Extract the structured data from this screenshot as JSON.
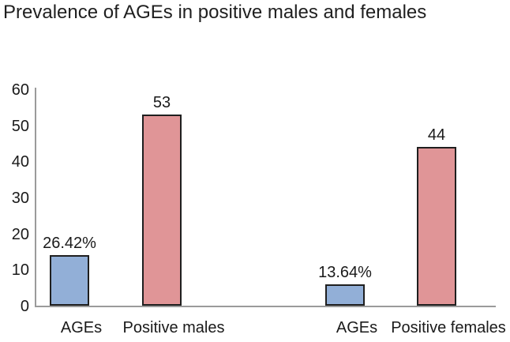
{
  "title": "Prevalence of AGEs in positive males and females",
  "colors": {
    "blue_bar": "#92AFD7",
    "pink_bar": "#E09597",
    "bar_border": "#1F1F1F",
    "axis_line": "#9B9B9B",
    "text": "#1A1A1A",
    "background": "#FFFFFF"
  },
  "chart_data": {
    "type": "bar",
    "title": "Prevalence of AGEs in positive males and females",
    "xlabel": "",
    "ylabel": "",
    "ylim": [
      0,
      60
    ],
    "yticks": [
      "0",
      "10",
      "20",
      "30",
      "40",
      "50",
      "60"
    ],
    "grid": false,
    "legend": "none",
    "bars": [
      {
        "category": "AGEs",
        "group": "positive males",
        "value": 14,
        "data_label": "26.42%",
        "color": "#92AFD7"
      },
      {
        "category": "Positive males",
        "group": "positive males",
        "value": 53,
        "data_label": "53",
        "color": "#E09597"
      },
      {
        "category": "AGEs",
        "group": "positive females",
        "value": 6,
        "data_label": "13.64%",
        "color": "#92AFD7"
      },
      {
        "category": "Positive females",
        "group": "positive females",
        "value": 44,
        "data_label": "44",
        "color": "#E09597"
      }
    ]
  }
}
